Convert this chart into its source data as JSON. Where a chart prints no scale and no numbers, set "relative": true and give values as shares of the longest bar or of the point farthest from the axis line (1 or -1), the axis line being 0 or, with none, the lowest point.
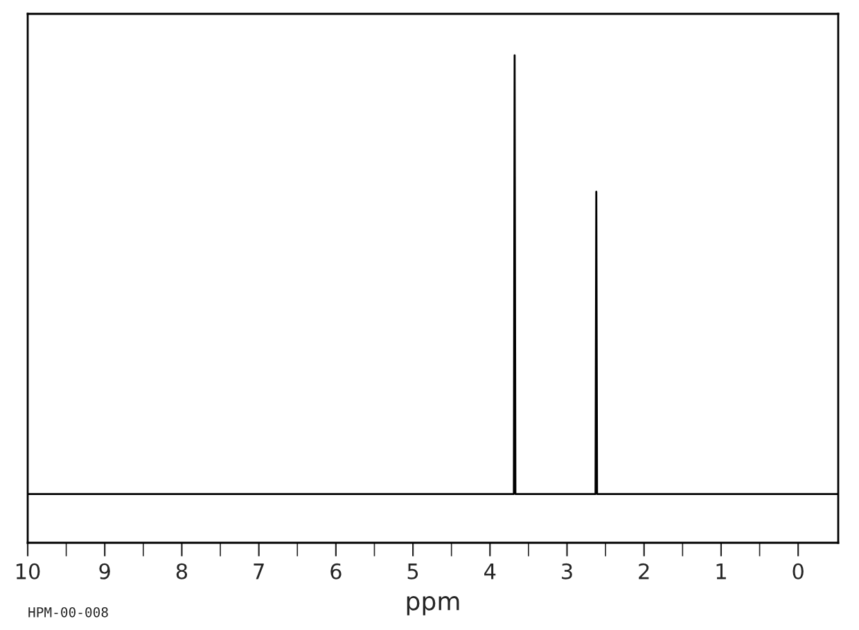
{
  "chart_data": {
    "type": "line",
    "relative": true,
    "xlabel": "ppm",
    "color": "#000000",
    "annotations": [
      "HPM-00-008"
    ],
    "x": [
      10,
      3.69,
      3.68,
      3.67,
      2.63,
      2.62,
      2.61,
      -0.52
    ],
    "values": [
      0.1,
      0.1,
      1,
      0.1,
      0.1,
      0.72,
      0.1,
      0.1
    ],
    "xlim": [
      10,
      -0.52
    ],
    "xticks": [
      10,
      {
        "value": 9.5,
        "label": null
      },
      9,
      {
        "value": 8.5,
        "label": null
      },
      8,
      {
        "value": 7.5,
        "label": null
      },
      7,
      {
        "value": 6.5,
        "label": null
      },
      6,
      {
        "value": 5.5,
        "label": null
      },
      5,
      {
        "value": 4.5,
        "label": null
      },
      4,
      {
        "value": 3.5,
        "label": null
      },
      3,
      {
        "value": 2.5,
        "label": null
      },
      2,
      {
        "value": 1.5,
        "label": null
      },
      1,
      {
        "value": 0.5,
        "label": null
      },
      0
    ],
    "tick_labels": "x",
    "grid": false,
    "legend": false
  }
}
